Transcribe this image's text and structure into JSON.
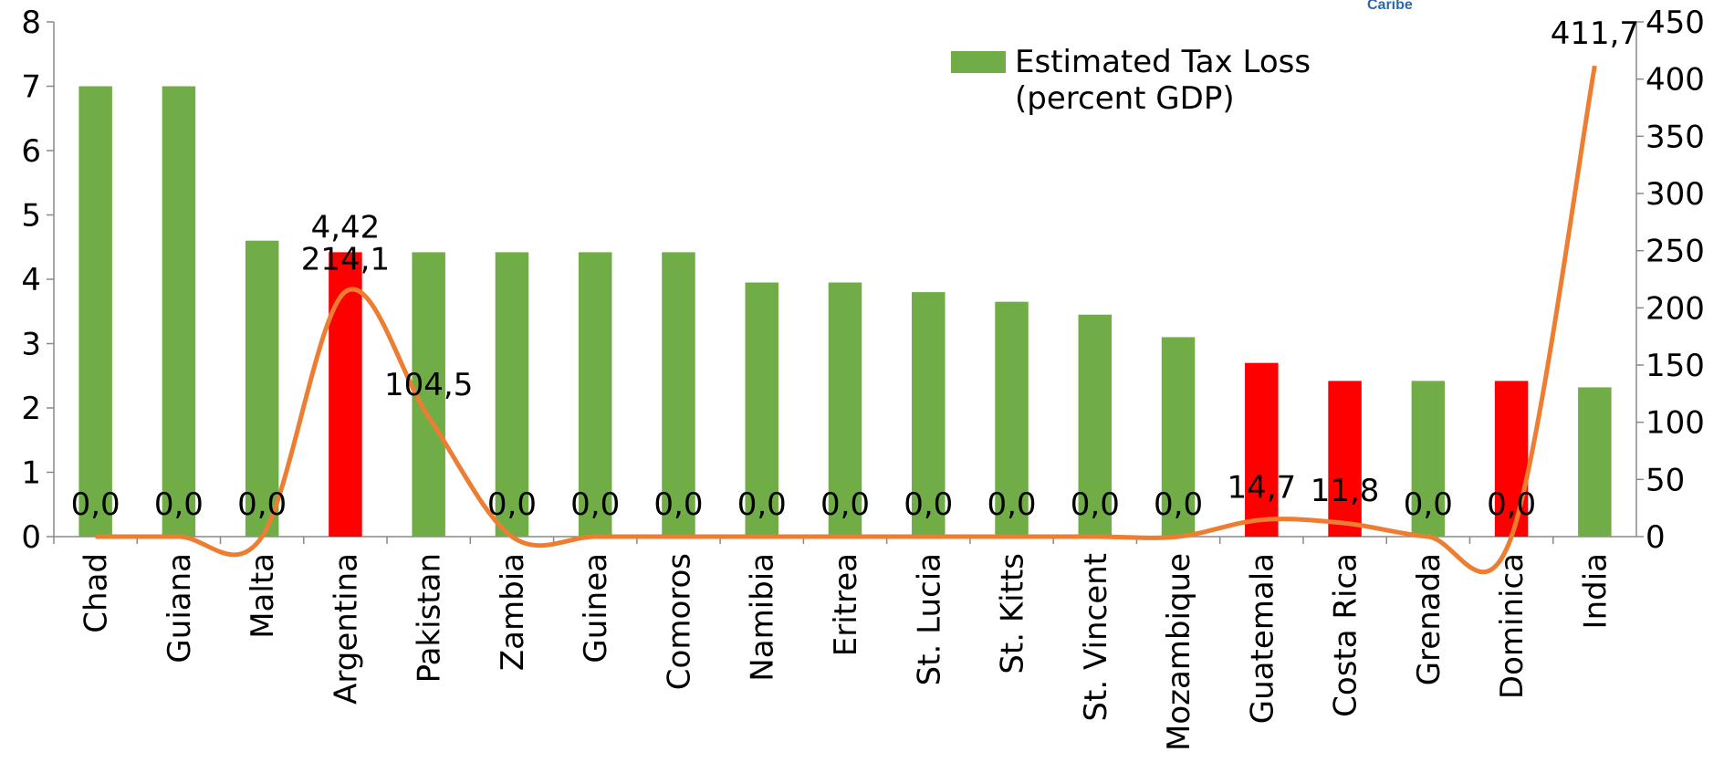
{
  "chart_data": {
    "type": "bar",
    "logo": "Caribe",
    "categories": [
      "Chad",
      "Guiana",
      "Malta",
      "Argentina",
      "Pakistan",
      "Zambia",
      "Guinea",
      "Comoros",
      "Namibia",
      "Eritrea",
      "St. Lucia",
      "St. Kitts",
      "St. Vincent",
      "Mozambique",
      "Guatemala",
      "Costa Rica",
      "Grenada",
      "Dominica",
      "India"
    ],
    "series": [
      {
        "name": "Estimated Tax Loss (percent GDP)",
        "type": "bar",
        "color": "#70ad47",
        "colors": [
          "#70ad47",
          "#70ad47",
          "#70ad47",
          "#ff0000",
          "#70ad47",
          "#70ad47",
          "#70ad47",
          "#70ad47",
          "#70ad47",
          "#70ad47",
          "#70ad47",
          "#70ad47",
          "#70ad47",
          "#70ad47",
          "#ff0000",
          "#ff0000",
          "#70ad47",
          "#ff0000",
          "#70ad47"
        ],
        "values": [
          7.0,
          7.0,
          4.6,
          4.42,
          4.42,
          4.42,
          4.42,
          4.42,
          3.95,
          3.95,
          3.8,
          3.65,
          3.45,
          3.1,
          2.7,
          2.42,
          2.42,
          2.42,
          2.32
        ],
        "value_labels": [
          null,
          null,
          null,
          "4,42",
          null,
          null,
          null,
          null,
          null,
          null,
          null,
          null,
          null,
          null,
          null,
          null,
          null,
          null,
          null
        ]
      },
      {
        "type": "line",
        "axis": "y2",
        "color": "#ed7d31",
        "values": [
          0,
          0,
          0,
          214.1,
          104.5,
          0,
          0,
          0,
          0,
          0,
          0,
          0,
          0,
          0,
          14.7,
          11.8,
          0,
          0,
          411.7
        ],
        "value_labels": [
          "0,0",
          "0,0",
          "0,0",
          "214,1",
          "104,5",
          "0,0",
          "0,0",
          "0,0",
          "0,0",
          "0,0",
          "0,0",
          "0,0",
          "0,0",
          "0,0",
          "14,7",
          "11,8",
          "0,0",
          "0,0",
          "411,7"
        ]
      }
    ],
    "ylim": [
      0,
      8
    ],
    "yticks": [
      0,
      1,
      2,
      3,
      4,
      5,
      6,
      7,
      8
    ],
    "y2lim": [
      0,
      450
    ],
    "y2ticks": [
      0,
      50,
      100,
      150,
      200,
      250,
      300,
      350,
      400,
      450
    ],
    "legend": "top-right"
  }
}
